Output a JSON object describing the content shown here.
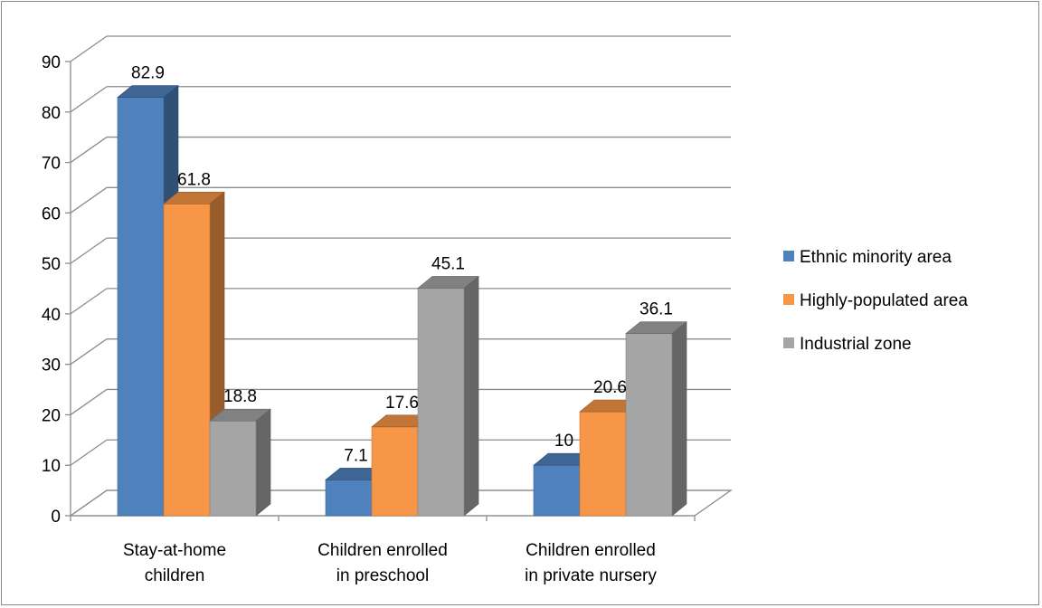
{
  "chart_data": {
    "type": "bar",
    "style": "3d-clustered-column",
    "categories": [
      [
        "Stay-at-home",
        "children"
      ],
      [
        "Children enrolled",
        "in preschool"
      ],
      [
        "Children enrolled",
        "in private nursery"
      ]
    ],
    "series": [
      {
        "name": "Ethnic minority area",
        "values": [
          82.9,
          7.1,
          10
        ],
        "labels": [
          "82.9",
          "7.1",
          "10"
        ],
        "color": "#4f81bd"
      },
      {
        "name": "Highly-populated area",
        "values": [
          61.8,
          17.6,
          20.6
        ],
        "labels": [
          "61.8",
          "17.6",
          "20.6"
        ],
        "color": "#f79646"
      },
      {
        "name": "Industrial zone",
        "values": [
          18.8,
          45.1,
          36.1
        ],
        "labels": [
          "18.8",
          "45.1",
          "36.1"
        ],
        "color": "#a5a5a5"
      }
    ],
    "y_ticks": [
      "0",
      "10",
      "20",
      "30",
      "40",
      "50",
      "60",
      "70",
      "80",
      "90"
    ],
    "ylim": [
      0,
      90
    ],
    "grid": true,
    "legend_position": "right",
    "title": "",
    "xlabel": "",
    "ylabel": ""
  }
}
